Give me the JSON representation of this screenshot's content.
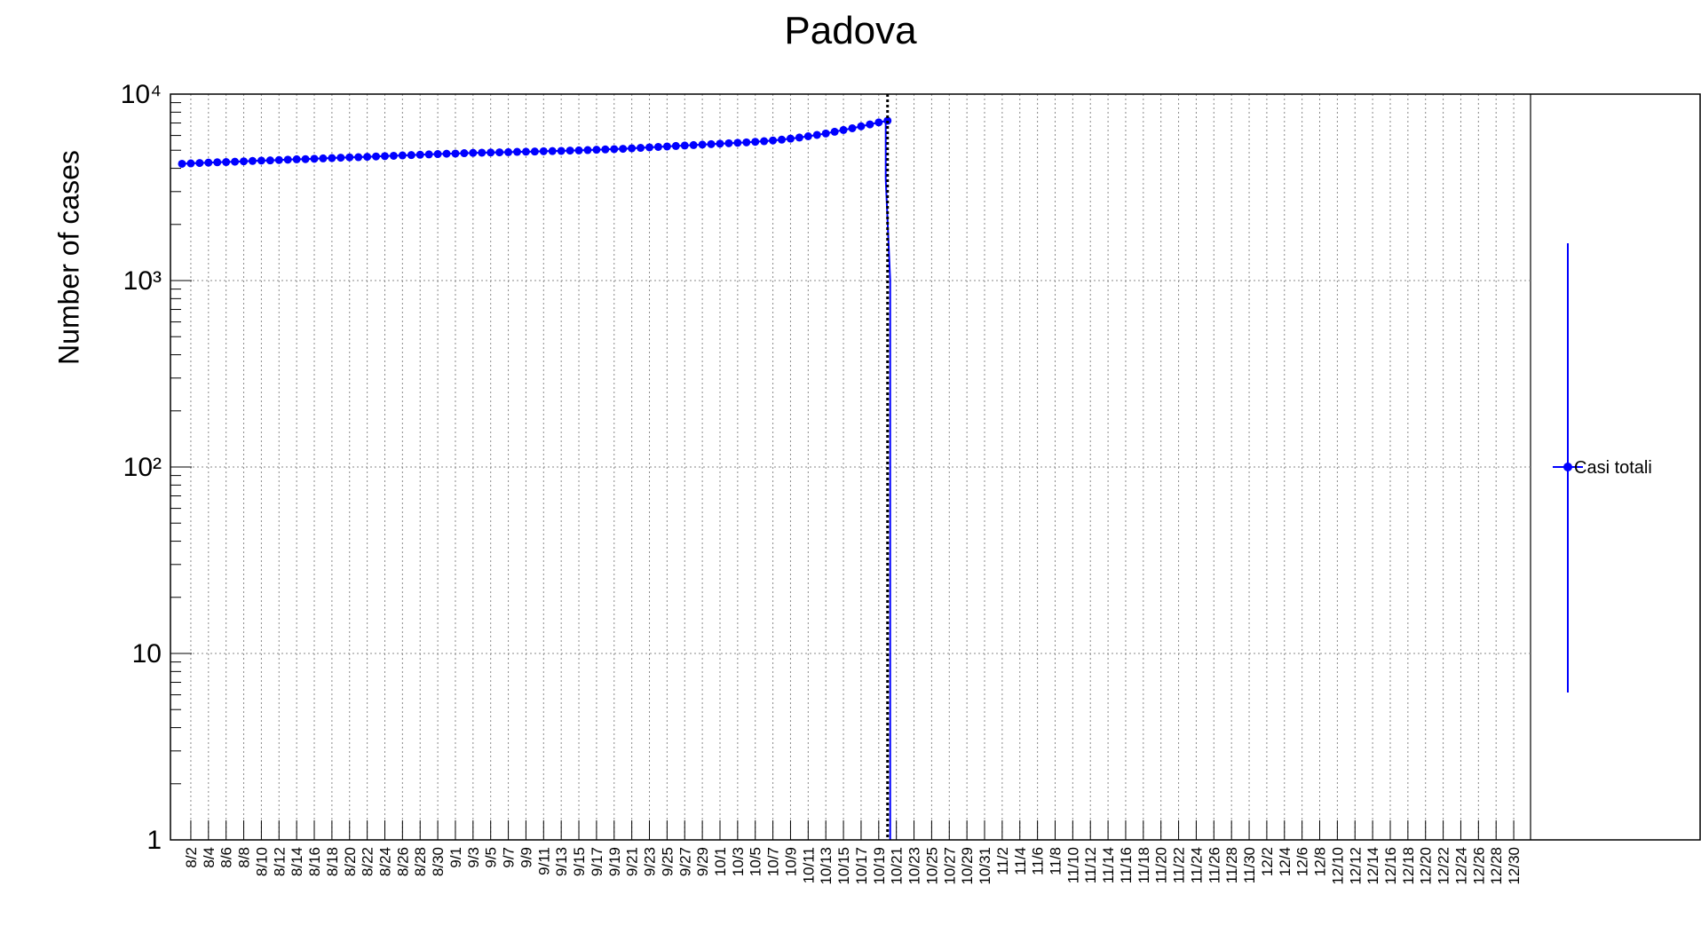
{
  "chart_data": {
    "type": "line",
    "title": "Padova",
    "ylabel": "Number of cases",
    "xlabel": "",
    "yscale": "log",
    "ylim": [
      1,
      10000
    ],
    "xlim": [
      "2020-08-01",
      "2020-12-31"
    ],
    "grid": true,
    "legend_position": "right",
    "y_tick_labels": [
      "1",
      "10",
      "10²",
      "10³",
      "10⁴"
    ],
    "x_tick_labels": [
      "8/2",
      "8/4",
      "8/6",
      "8/8",
      "8/10",
      "8/12",
      "8/14",
      "8/16",
      "8/18",
      "8/20",
      "8/22",
      "8/24",
      "8/26",
      "8/28",
      "8/30",
      "9/1",
      "9/3",
      "9/5",
      "9/7",
      "9/9",
      "9/11",
      "9/13",
      "9/15",
      "9/17",
      "9/19",
      "9/21",
      "9/23",
      "9/25",
      "9/27",
      "9/29",
      "10/1",
      "10/3",
      "10/5",
      "10/7",
      "10/9",
      "10/11",
      "10/13",
      "10/15",
      "10/17",
      "10/19",
      "10/21",
      "10/23",
      "10/25",
      "10/27",
      "10/29",
      "10/31",
      "11/2",
      "11/4",
      "11/6",
      "11/8",
      "11/10",
      "11/12",
      "11/14",
      "11/16",
      "11/18",
      "11/20",
      "11/22",
      "11/24",
      "11/26",
      "11/28",
      "11/30",
      "12/2",
      "12/4",
      "12/6",
      "12/8",
      "12/10",
      "12/12",
      "12/14",
      "12/16",
      "12/18",
      "12/20",
      "12/22",
      "12/24",
      "12/26",
      "12/28",
      "12/30"
    ],
    "marker_date": "2020-10-20",
    "series": [
      {
        "name": "Casi totali",
        "color": "#0000ff",
        "x": [
          "2020-08-01",
          "2020-08-02",
          "2020-08-03",
          "2020-08-04",
          "2020-08-05",
          "2020-08-06",
          "2020-08-07",
          "2020-08-08",
          "2020-08-09",
          "2020-08-10",
          "2020-08-11",
          "2020-08-12",
          "2020-08-13",
          "2020-08-14",
          "2020-08-15",
          "2020-08-16",
          "2020-08-17",
          "2020-08-18",
          "2020-08-19",
          "2020-08-20",
          "2020-08-21",
          "2020-08-22",
          "2020-08-23",
          "2020-08-24",
          "2020-08-25",
          "2020-08-26",
          "2020-08-27",
          "2020-08-28",
          "2020-08-29",
          "2020-08-30",
          "2020-08-31",
          "2020-09-01",
          "2020-09-02",
          "2020-09-03",
          "2020-09-04",
          "2020-09-05",
          "2020-09-06",
          "2020-09-07",
          "2020-09-08",
          "2020-09-09",
          "2020-09-10",
          "2020-09-11",
          "2020-09-12",
          "2020-09-13",
          "2020-09-14",
          "2020-09-15",
          "2020-09-16",
          "2020-09-17",
          "2020-09-18",
          "2020-09-19",
          "2020-09-20",
          "2020-09-21",
          "2020-09-22",
          "2020-09-23",
          "2020-09-24",
          "2020-09-25",
          "2020-09-26",
          "2020-09-27",
          "2020-09-28",
          "2020-09-29",
          "2020-09-30",
          "2020-10-01",
          "2020-10-02",
          "2020-10-03",
          "2020-10-04",
          "2020-10-05",
          "2020-10-06",
          "2020-10-07",
          "2020-10-08",
          "2020-10-09",
          "2020-10-10",
          "2020-10-11",
          "2020-10-12",
          "2020-10-13",
          "2020-10-14",
          "2020-10-15",
          "2020-10-16",
          "2020-10-17",
          "2020-10-18",
          "2020-10-19",
          "2020-10-20"
        ],
        "y": [
          4230,
          4250,
          4270,
          4290,
          4310,
          4320,
          4340,
          4360,
          4380,
          4400,
          4410,
          4430,
          4450,
          4470,
          4480,
          4500,
          4520,
          4540,
          4560,
          4580,
          4590,
          4610,
          4630,
          4650,
          4670,
          4690,
          4710,
          4730,
          4750,
          4770,
          4790,
          4800,
          4820,
          4840,
          4850,
          4860,
          4870,
          4880,
          4900,
          4910,
          4920,
          4940,
          4950,
          4960,
          4980,
          4990,
          5010,
          5030,
          5050,
          5070,
          5090,
          5120,
          5150,
          5180,
          5210,
          5240,
          5270,
          5300,
          5330,
          5360,
          5390,
          5420,
          5450,
          5480,
          5510,
          5550,
          5590,
          5640,
          5700,
          5770,
          5850,
          5940,
          6040,
          6150,
          6280,
          6420,
          6560,
          6720,
          6880,
          7050,
          7200
        ]
      }
    ]
  }
}
